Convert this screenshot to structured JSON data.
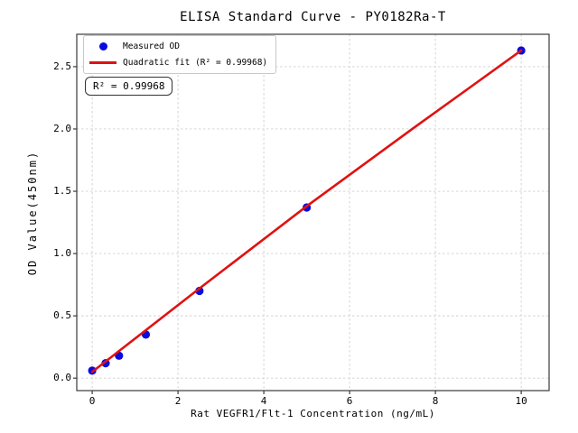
{
  "chart_data": {
    "type": "scatter",
    "title": "ELISA Standard Curve - PY0182Ra-T",
    "xlabel": "Rat VEGFR1/Flt-1 Concentration (ng/mL)",
    "ylabel": "OD Value(450nm)",
    "xlim": [
      -0.36,
      10.65
    ],
    "ylim": [
      -0.1,
      2.76
    ],
    "x_ticks": [
      0,
      2,
      4,
      6,
      8,
      10
    ],
    "x_tick_labels": [
      "0",
      "2",
      "4",
      "6",
      "8",
      "10"
    ],
    "y_ticks": [
      0.0,
      0.5,
      1.0,
      1.5,
      2.0,
      2.5
    ],
    "y_tick_labels": [
      "0.0",
      "0.5",
      "1.0",
      "1.5",
      "2.0",
      "2.5"
    ],
    "grid": true,
    "legend_position": "upper left",
    "series": [
      {
        "name": "Measured OD",
        "type": "scatter",
        "color": "#0b0bdd",
        "x": [
          0,
          0.313,
          0.625,
          1.25,
          2.5,
          5,
          10
        ],
        "y": [
          0.06,
          0.12,
          0.18,
          0.35,
          0.7,
          1.37,
          2.63
        ]
      },
      {
        "name": "Quadratic fit (R² = 0.99968)",
        "type": "line",
        "color": "#e01212",
        "x": [
          0,
          2.5,
          5,
          7.5,
          10
        ],
        "y": [
          0.05,
          0.72,
          1.38,
          2.01,
          2.63
        ]
      }
    ],
    "annotation": "R² = 0.99968",
    "colors": {
      "grid": "#cfcfcf",
      "axis": "#3a3a3a",
      "background": "#ffffff"
    }
  }
}
